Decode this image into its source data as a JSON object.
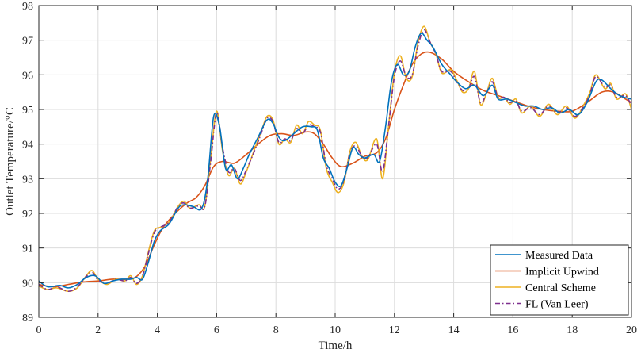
{
  "chart_data": {
    "type": "line",
    "xlabel": "Time/h",
    "ylabel": "Outlet Temperature/°C",
    "xlim": [
      0,
      20
    ],
    "ylim": [
      89,
      98
    ],
    "x_ticks": [
      0,
      2,
      4,
      6,
      8,
      10,
      12,
      14,
      16,
      18,
      20
    ],
    "y_ticks": [
      89,
      90,
      91,
      92,
      93,
      94,
      95,
      96,
      97,
      98
    ],
    "grid": true,
    "legend_position": "bottom-right",
    "series": [
      {
        "name": "Measured Data",
        "color": "#0072BD",
        "dash": "solid",
        "points": [
          [
            0,
            90.05
          ],
          [
            0.3,
            89.88
          ],
          [
            0.7,
            89.92
          ],
          [
            1.0,
            89.85
          ],
          [
            1.3,
            89.95
          ],
          [
            1.6,
            90.15
          ],
          [
            1.9,
            90.2
          ],
          [
            2.2,
            89.98
          ],
          [
            2.5,
            90.05
          ],
          [
            2.8,
            90.1
          ],
          [
            3.1,
            90.1
          ],
          [
            3.3,
            90.15
          ],
          [
            3.5,
            90.1
          ],
          [
            3.7,
            90.6
          ],
          [
            3.9,
            91.2
          ],
          [
            4.1,
            91.5
          ],
          [
            4.4,
            91.7
          ],
          [
            4.7,
            92.15
          ],
          [
            4.9,
            92.25
          ],
          [
            5.2,
            92.2
          ],
          [
            5.5,
            92.15
          ],
          [
            5.7,
            93.0
          ],
          [
            5.9,
            94.8
          ],
          [
            6.1,
            94.5
          ],
          [
            6.3,
            93.3
          ],
          [
            6.5,
            93.4
          ],
          [
            6.7,
            93.0
          ],
          [
            6.9,
            93.3
          ],
          [
            7.1,
            93.7
          ],
          [
            7.4,
            94.2
          ],
          [
            7.7,
            94.7
          ],
          [
            7.9,
            94.6
          ],
          [
            8.1,
            94.2
          ],
          [
            8.3,
            94.1
          ],
          [
            8.6,
            94.3
          ],
          [
            8.9,
            94.5
          ],
          [
            9.2,
            94.5
          ],
          [
            9.4,
            94.4
          ],
          [
            9.6,
            93.6
          ],
          [
            9.8,
            93.3
          ],
          [
            10.0,
            92.9
          ],
          [
            10.2,
            92.8
          ],
          [
            10.4,
            93.3
          ],
          [
            10.6,
            93.9
          ],
          [
            10.8,
            93.7
          ],
          [
            11.0,
            93.6
          ],
          [
            11.3,
            93.7
          ],
          [
            11.5,
            93.5
          ],
          [
            11.7,
            94.5
          ],
          [
            11.9,
            95.8
          ],
          [
            12.1,
            96.3
          ],
          [
            12.3,
            96.0
          ],
          [
            12.5,
            96.1
          ],
          [
            12.7,
            96.8
          ],
          [
            12.9,
            97.2
          ],
          [
            13.1,
            97.0
          ],
          [
            13.3,
            96.8
          ],
          [
            13.6,
            96.3
          ],
          [
            13.9,
            96.0
          ],
          [
            14.1,
            95.8
          ],
          [
            14.4,
            95.6
          ],
          [
            14.7,
            95.7
          ],
          [
            15.0,
            95.4
          ],
          [
            15.3,
            95.7
          ],
          [
            15.5,
            95.3
          ],
          [
            15.8,
            95.3
          ],
          [
            16.1,
            95.2
          ],
          [
            16.4,
            95.1
          ],
          [
            16.7,
            95.1
          ],
          [
            17.0,
            95.0
          ],
          [
            17.3,
            95.05
          ],
          [
            17.6,
            94.9
          ],
          [
            17.9,
            95.0
          ],
          [
            18.2,
            94.85
          ],
          [
            18.5,
            95.2
          ],
          [
            18.8,
            95.8
          ],
          [
            19.0,
            95.85
          ],
          [
            19.3,
            95.6
          ],
          [
            19.6,
            95.4
          ],
          [
            20.0,
            95.3
          ]
        ]
      },
      {
        "name": "Implicit Upwind",
        "color": "#D95319",
        "dash": "solid",
        "points": [
          [
            0,
            89.95
          ],
          [
            0.5,
            89.88
          ],
          [
            1.0,
            89.95
          ],
          [
            1.5,
            90.02
          ],
          [
            2.0,
            90.05
          ],
          [
            2.5,
            90.1
          ],
          [
            3.0,
            90.1
          ],
          [
            3.3,
            90.18
          ],
          [
            3.6,
            90.5
          ],
          [
            3.9,
            91.1
          ],
          [
            4.2,
            91.6
          ],
          [
            4.6,
            92.0
          ],
          [
            5.0,
            92.3
          ],
          [
            5.3,
            92.45
          ],
          [
            5.6,
            92.8
          ],
          [
            5.9,
            93.35
          ],
          [
            6.2,
            93.5
          ],
          [
            6.6,
            93.45
          ],
          [
            7.0,
            93.7
          ],
          [
            7.4,
            94.0
          ],
          [
            7.8,
            94.25
          ],
          [
            8.2,
            94.3
          ],
          [
            8.6,
            94.25
          ],
          [
            9.0,
            94.35
          ],
          [
            9.3,
            94.3
          ],
          [
            9.6,
            94.0
          ],
          [
            9.9,
            93.6
          ],
          [
            10.2,
            93.35
          ],
          [
            10.6,
            93.45
          ],
          [
            11.0,
            93.65
          ],
          [
            11.4,
            93.75
          ],
          [
            11.7,
            94.15
          ],
          [
            12.0,
            95.0
          ],
          [
            12.3,
            95.7
          ],
          [
            12.6,
            96.3
          ],
          [
            12.9,
            96.6
          ],
          [
            13.2,
            96.65
          ],
          [
            13.6,
            96.45
          ],
          [
            14.0,
            96.1
          ],
          [
            14.5,
            95.8
          ],
          [
            15.0,
            95.55
          ],
          [
            15.5,
            95.4
          ],
          [
            16.0,
            95.25
          ],
          [
            16.5,
            95.1
          ],
          [
            17.0,
            95.0
          ],
          [
            17.5,
            94.95
          ],
          [
            18.0,
            94.95
          ],
          [
            18.5,
            95.2
          ],
          [
            19.0,
            95.5
          ],
          [
            19.4,
            95.5
          ],
          [
            19.8,
            95.3
          ],
          [
            20.0,
            95.2
          ]
        ]
      },
      {
        "name": "Central Scheme",
        "color": "#EDB120",
        "dash": "solid",
        "points": [
          [
            0,
            89.9
          ],
          [
            0.3,
            89.8
          ],
          [
            0.6,
            89.85
          ],
          [
            1.0,
            89.75
          ],
          [
            1.3,
            89.85
          ],
          [
            1.6,
            90.2
          ],
          [
            1.8,
            90.35
          ],
          [
            2.0,
            90.1
          ],
          [
            2.3,
            89.95
          ],
          [
            2.6,
            90.1
          ],
          [
            2.9,
            90.05
          ],
          [
            3.1,
            90.2
          ],
          [
            3.3,
            89.95
          ],
          [
            3.5,
            90.2
          ],
          [
            3.7,
            90.9
          ],
          [
            3.9,
            91.5
          ],
          [
            4.1,
            91.6
          ],
          [
            4.4,
            91.75
          ],
          [
            4.7,
            92.2
          ],
          [
            4.9,
            92.35
          ],
          [
            5.1,
            92.15
          ],
          [
            5.4,
            92.25
          ],
          [
            5.6,
            92.2
          ],
          [
            5.8,
            93.6
          ],
          [
            6.0,
            94.95
          ],
          [
            6.2,
            93.8
          ],
          [
            6.4,
            93.1
          ],
          [
            6.6,
            93.3
          ],
          [
            6.8,
            92.85
          ],
          [
            7.0,
            93.2
          ],
          [
            7.3,
            93.9
          ],
          [
            7.5,
            94.35
          ],
          [
            7.7,
            94.8
          ],
          [
            7.9,
            94.7
          ],
          [
            8.1,
            94.0
          ],
          [
            8.3,
            94.15
          ],
          [
            8.5,
            94.05
          ],
          [
            8.7,
            94.55
          ],
          [
            8.9,
            94.3
          ],
          [
            9.1,
            94.65
          ],
          [
            9.3,
            94.55
          ],
          [
            9.5,
            94.4
          ],
          [
            9.7,
            93.3
          ],
          [
            9.9,
            92.9
          ],
          [
            10.1,
            92.6
          ],
          [
            10.3,
            92.9
          ],
          [
            10.5,
            93.8
          ],
          [
            10.7,
            94.05
          ],
          [
            10.9,
            93.65
          ],
          [
            11.1,
            93.55
          ],
          [
            11.4,
            94.15
          ],
          [
            11.6,
            93.0
          ],
          [
            11.8,
            94.5
          ],
          [
            12.0,
            96.05
          ],
          [
            12.2,
            96.55
          ],
          [
            12.4,
            95.9
          ],
          [
            12.6,
            95.95
          ],
          [
            12.8,
            96.95
          ],
          [
            13.0,
            97.4
          ],
          [
            13.2,
            96.95
          ],
          [
            13.4,
            96.6
          ],
          [
            13.6,
            96.05
          ],
          [
            13.9,
            96.15
          ],
          [
            14.1,
            95.85
          ],
          [
            14.3,
            95.5
          ],
          [
            14.5,
            95.6
          ],
          [
            14.7,
            96.1
          ],
          [
            14.9,
            95.15
          ],
          [
            15.1,
            95.45
          ],
          [
            15.3,
            95.9
          ],
          [
            15.5,
            95.35
          ],
          [
            15.7,
            95.35
          ],
          [
            15.9,
            95.15
          ],
          [
            16.1,
            95.3
          ],
          [
            16.3,
            94.9
          ],
          [
            16.6,
            95.1
          ],
          [
            16.9,
            94.8
          ],
          [
            17.2,
            95.15
          ],
          [
            17.5,
            94.85
          ],
          [
            17.8,
            95.1
          ],
          [
            18.1,
            94.75
          ],
          [
            18.4,
            95.15
          ],
          [
            18.6,
            95.5
          ],
          [
            18.8,
            96.0
          ],
          [
            19.1,
            95.6
          ],
          [
            19.3,
            95.75
          ],
          [
            19.5,
            95.3
          ],
          [
            19.8,
            95.45
          ],
          [
            20.0,
            95.0
          ]
        ]
      },
      {
        "name": "FL (Van Leer)",
        "color": "#7E2F8E",
        "dash": "dashdot",
        "points": [
          [
            0,
            89.95
          ],
          [
            0.3,
            89.8
          ],
          [
            0.6,
            89.88
          ],
          [
            1.0,
            89.75
          ],
          [
            1.3,
            89.88
          ],
          [
            1.6,
            90.18
          ],
          [
            1.8,
            90.3
          ],
          [
            2.0,
            90.08
          ],
          [
            2.3,
            89.98
          ],
          [
            2.6,
            90.1
          ],
          [
            2.9,
            90.05
          ],
          [
            3.1,
            90.15
          ],
          [
            3.3,
            89.98
          ],
          [
            3.5,
            90.2
          ],
          [
            3.7,
            90.85
          ],
          [
            3.9,
            91.45
          ],
          [
            4.1,
            91.6
          ],
          [
            4.4,
            91.75
          ],
          [
            4.7,
            92.2
          ],
          [
            4.9,
            92.3
          ],
          [
            5.1,
            92.15
          ],
          [
            5.4,
            92.22
          ],
          [
            5.6,
            92.2
          ],
          [
            5.8,
            93.5
          ],
          [
            6.0,
            94.9
          ],
          [
            6.2,
            93.9
          ],
          [
            6.4,
            93.2
          ],
          [
            6.6,
            93.3
          ],
          [
            6.8,
            92.95
          ],
          [
            7.0,
            93.25
          ],
          [
            7.3,
            93.85
          ],
          [
            7.5,
            94.3
          ],
          [
            7.7,
            94.75
          ],
          [
            7.9,
            94.65
          ],
          [
            8.1,
            94.05
          ],
          [
            8.3,
            94.15
          ],
          [
            8.5,
            94.1
          ],
          [
            8.7,
            94.45
          ],
          [
            8.9,
            94.3
          ],
          [
            9.1,
            94.55
          ],
          [
            9.3,
            94.5
          ],
          [
            9.5,
            94.35
          ],
          [
            9.7,
            93.4
          ],
          [
            9.9,
            93.0
          ],
          [
            10.1,
            92.7
          ],
          [
            10.3,
            92.95
          ],
          [
            10.5,
            93.75
          ],
          [
            10.7,
            93.95
          ],
          [
            10.9,
            93.65
          ],
          [
            11.1,
            93.6
          ],
          [
            11.4,
            94.0
          ],
          [
            11.6,
            93.2
          ],
          [
            11.8,
            94.5
          ],
          [
            12.0,
            95.95
          ],
          [
            12.2,
            96.4
          ],
          [
            12.4,
            95.95
          ],
          [
            12.6,
            96.0
          ],
          [
            12.8,
            96.85
          ],
          [
            13.0,
            97.3
          ],
          [
            13.2,
            96.95
          ],
          [
            13.4,
            96.6
          ],
          [
            13.6,
            96.1
          ],
          [
            13.9,
            96.1
          ],
          [
            14.1,
            95.8
          ],
          [
            14.3,
            95.55
          ],
          [
            14.5,
            95.6
          ],
          [
            14.7,
            95.95
          ],
          [
            14.9,
            95.2
          ],
          [
            15.1,
            95.45
          ],
          [
            15.3,
            95.8
          ],
          [
            15.5,
            95.35
          ],
          [
            15.7,
            95.35
          ],
          [
            15.9,
            95.2
          ],
          [
            16.1,
            95.25
          ],
          [
            16.3,
            94.95
          ],
          [
            16.6,
            95.05
          ],
          [
            16.9,
            94.85
          ],
          [
            17.2,
            95.1
          ],
          [
            17.5,
            94.9
          ],
          [
            17.8,
            95.05
          ],
          [
            18.1,
            94.8
          ],
          [
            18.4,
            95.1
          ],
          [
            18.6,
            95.45
          ],
          [
            18.8,
            95.95
          ],
          [
            19.1,
            95.65
          ],
          [
            19.3,
            95.7
          ],
          [
            19.5,
            95.35
          ],
          [
            19.8,
            95.4
          ],
          [
            20.0,
            95.1
          ]
        ]
      }
    ]
  }
}
